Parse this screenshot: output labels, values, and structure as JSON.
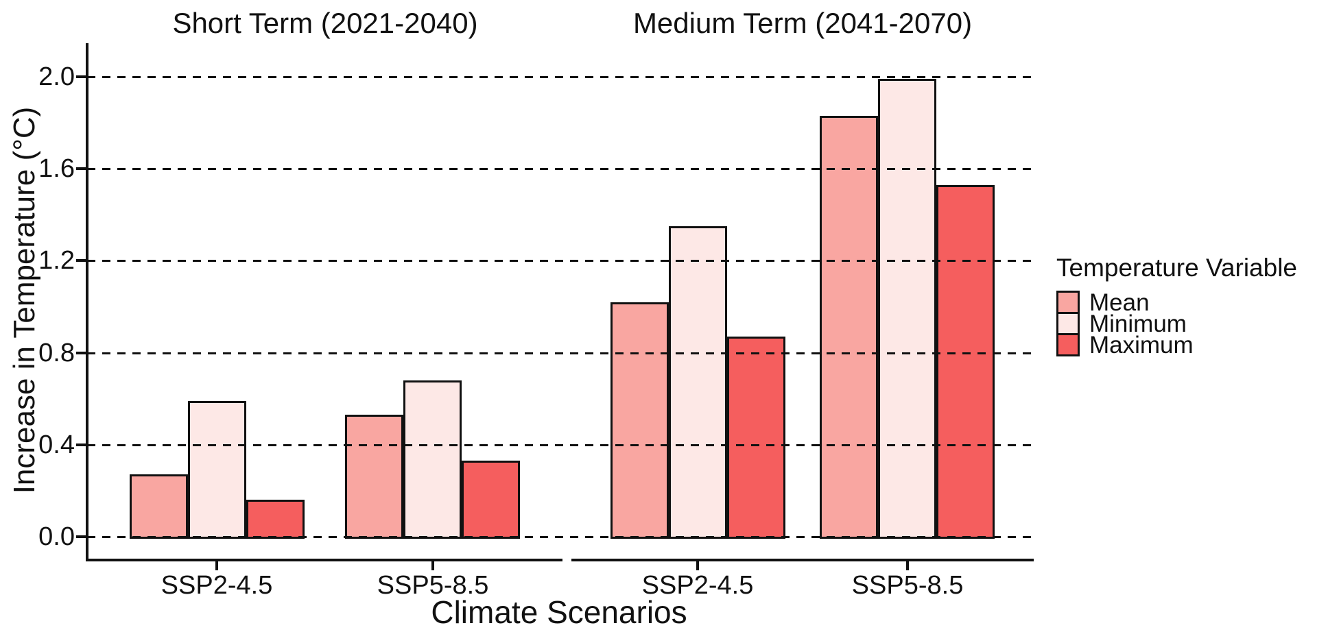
{
  "chart_data": {
    "type": "bar",
    "title": "",
    "xlabel": "Climate Scenarios",
    "ylabel": "Increase in Temperature (°C)",
    "ylim": [
      0,
      2.05
    ],
    "yticks": [
      "0.0",
      "0.4",
      "0.8",
      "1.2",
      "1.6",
      "2.0"
    ],
    "ytick_values": [
      0,
      0.4,
      0.8,
      1.2,
      1.6,
      2.0
    ],
    "grid": "horizontal dashed gridlines drawn over bars",
    "legend_position": "right",
    "legend_title": "Temperature Variable",
    "series": [
      {
        "name": "Mean",
        "color": "#F9A6A1"
      },
      {
        "name": "Minimum",
        "color": "#FDE8E6"
      },
      {
        "name": "Maximum",
        "color": "#F55E5E"
      }
    ],
    "facets": [
      {
        "title": "Short Term (2021-2040)",
        "categories": [
          "SSP2-4.5",
          "SSP5-8.5"
        ],
        "values": [
          [
            0.27,
            0.59,
            0.16
          ],
          [
            0.53,
            0.68,
            0.33
          ]
        ]
      },
      {
        "title": "Medium Term (2041-2070)",
        "categories": [
          "SSP2-4.5",
          "SSP5-8.5"
        ],
        "values": [
          [
            1.02,
            1.35,
            0.87
          ],
          [
            1.83,
            1.99,
            1.53
          ]
        ]
      }
    ]
  }
}
